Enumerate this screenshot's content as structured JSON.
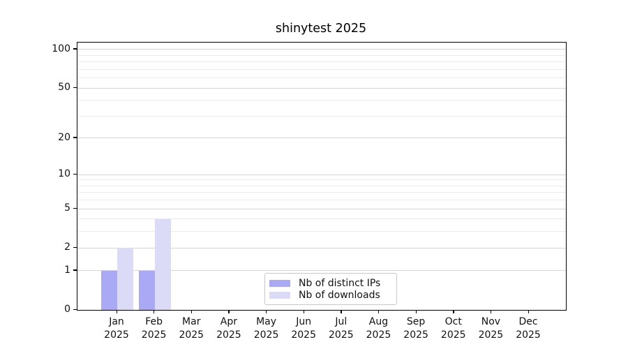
{
  "chart_data": {
    "type": "bar",
    "title": "shinytest 2025",
    "categories": [
      "Jan",
      "Feb",
      "Mar",
      "Apr",
      "May",
      "Jun",
      "Jul",
      "Aug",
      "Sep",
      "Oct",
      "Nov",
      "Dec"
    ],
    "x_tick_second_line": "2025",
    "series": [
      {
        "name": "Nb of distinct IPs",
        "color": "#a9a9f6",
        "values": [
          1,
          1,
          0,
          0,
          0,
          0,
          0,
          0,
          0,
          0,
          0,
          0
        ]
      },
      {
        "name": "Nb of downloads",
        "color": "#dbdbf8",
        "values": [
          2,
          4,
          0,
          0,
          0,
          0,
          0,
          0,
          0,
          0,
          0,
          0
        ]
      }
    ],
    "xlabel": "",
    "ylabel": "",
    "y_axis": {
      "scale": "log10(value+1)",
      "ticks": [
        0,
        1,
        2,
        5,
        10,
        20,
        50,
        100
      ],
      "tick_labels": [
        "0",
        "1",
        "2",
        "5",
        "10",
        "20",
        "50",
        "100"
      ],
      "range": [
        0,
        110
      ]
    },
    "gridlines": {
      "major": [
        1,
        2,
        5,
        10,
        20,
        50,
        100
      ],
      "minor": [
        3,
        4,
        6,
        7,
        8,
        9,
        30,
        40,
        60,
        70,
        80,
        90
      ],
      "major_color": "#d3d3d3",
      "minor_color": "#ebebeb"
    },
    "legend": {
      "position": "inside-bottom-center",
      "entries": [
        "Nb of distinct IPs",
        "Nb of downloads"
      ]
    },
    "colors": {
      "frame": "#000000",
      "text": "#111111",
      "background": "#ffffff"
    }
  }
}
